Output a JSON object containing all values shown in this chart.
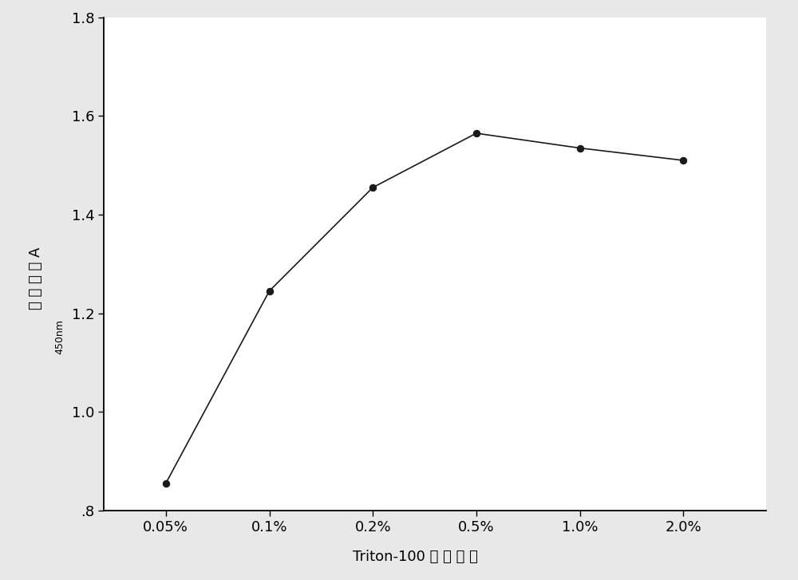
{
  "x_labels": [
    "0.05%",
    "0.1%",
    "0.2%",
    "0.5%",
    "1.0%",
    "2.0%"
  ],
  "x_positions": [
    1,
    2,
    3,
    4,
    5,
    6
  ],
  "y_values": [
    0.855,
    1.245,
    1.455,
    1.565,
    1.535,
    1.51
  ],
  "xlabel_roman": "Triton­100 ",
  "xlabel_chinese": "浓 度 优 化",
  "ylabel_chinese": "吸 光 度 値 A",
  "ylabel_subscript": "450nm",
  "ylim": [
    0.8,
    1.8
  ],
  "yticks": [
    0.8,
    1.0,
    1.2,
    1.4,
    1.6,
    1.8
  ],
  "ytick_labels": [
    ".8",
    "1.0",
    "1.2",
    "1.4",
    "1.6",
    "1.8"
  ],
  "line_color": "#1a1a1a",
  "marker": "o",
  "marker_size": 6,
  "marker_facecolor": "#1a1a1a",
  "line_width": 1.2,
  "bg_color": "#e8e8e8",
  "plot_bg_color": "#ffffff",
  "fig_width": 10.0,
  "fig_height": 7.27,
  "dpi": 100,
  "tick_fontsize": 13,
  "label_fontsize": 13
}
